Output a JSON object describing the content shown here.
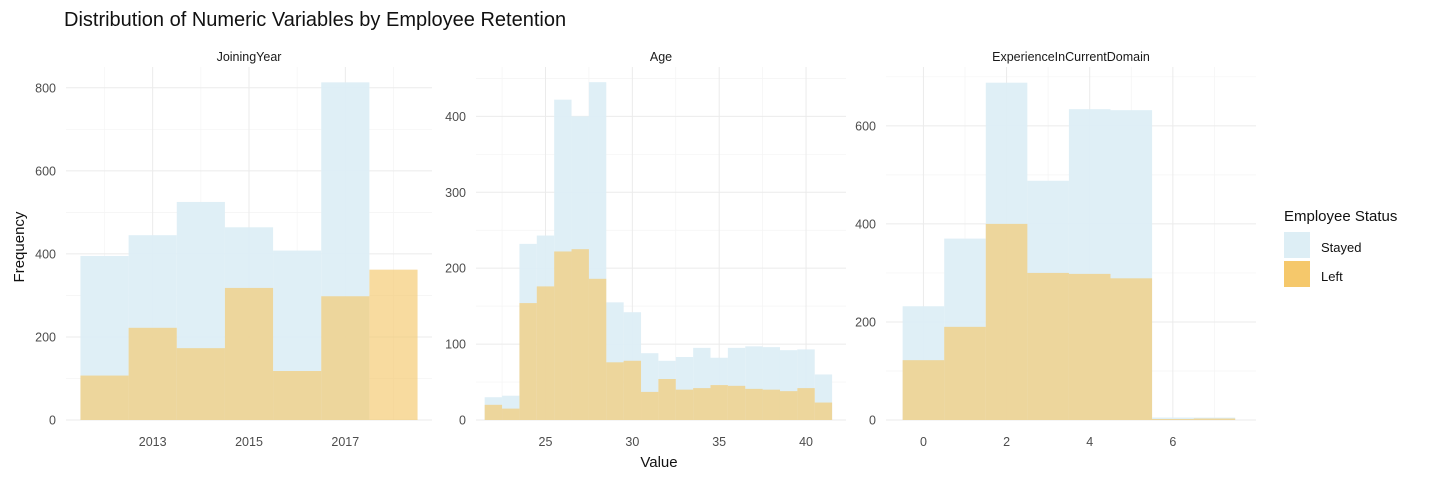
{
  "chart_data": {
    "type": "bar",
    "title": "Distribution of Numeric Variables by Employee Retention",
    "xlabel": "Value",
    "ylabel": "Frequency",
    "legend": {
      "title": "Employee Status",
      "placement": "right",
      "entries": [
        {
          "label": "Stayed",
          "color": "#ddeef5"
        },
        {
          "label": "Left",
          "color": "#f5c86b"
        }
      ]
    },
    "grid": true,
    "panels": [
      {
        "strip": "JoiningYear",
        "xlim": [
          2011.2,
          2018.8
        ],
        "ylim": [
          0,
          850
        ],
        "x_ticks": [
          2013,
          2015,
          2017
        ],
        "y_ticks": [
          0,
          200,
          400,
          600,
          800
        ],
        "bins": [
          {
            "from": 2011.5,
            "to": 2012.5,
            "stayed": 395,
            "left": 107
          },
          {
            "from": 2012.5,
            "to": 2013.5,
            "stayed": 445,
            "left": 222
          },
          {
            "from": 2013.5,
            "to": 2014.5,
            "stayed": 525,
            "left": 173
          },
          {
            "from": 2014.5,
            "to": 2015.5,
            "stayed": 464,
            "left": 318
          },
          {
            "from": 2015.5,
            "to": 2016.5,
            "stayed": 408,
            "left": 118
          },
          {
            "from": 2016.5,
            "to": 2017.5,
            "stayed": 813,
            "left": 298
          },
          {
            "from": 2017.5,
            "to": 2018.5,
            "stayed": 0,
            "left": 362
          }
        ]
      },
      {
        "strip": "Age",
        "xlim": [
          21.0,
          42.3
        ],
        "ylim": [
          0,
          465
        ],
        "x_ticks": [
          25,
          30,
          35,
          40
        ],
        "y_ticks": [
          0,
          100,
          200,
          300,
          400
        ],
        "bins": [
          {
            "from": 21.5,
            "to": 22.5,
            "stayed": 30,
            "left": 20
          },
          {
            "from": 22.5,
            "to": 23.5,
            "stayed": 32,
            "left": 15
          },
          {
            "from": 23.5,
            "to": 24.5,
            "stayed": 232,
            "left": 154
          },
          {
            "from": 24.5,
            "to": 25.5,
            "stayed": 243,
            "left": 176
          },
          {
            "from": 25.5,
            "to": 26.5,
            "stayed": 422,
            "left": 222
          },
          {
            "from": 26.5,
            "to": 27.5,
            "stayed": 400,
            "left": 225
          },
          {
            "from": 27.5,
            "to": 28.5,
            "stayed": 445,
            "left": 186
          },
          {
            "from": 28.5,
            "to": 29.5,
            "stayed": 155,
            "left": 76
          },
          {
            "from": 29.5,
            "to": 30.5,
            "stayed": 142,
            "left": 78
          },
          {
            "from": 30.5,
            "to": 31.5,
            "stayed": 88,
            "left": 37
          },
          {
            "from": 31.5,
            "to": 32.5,
            "stayed": 78,
            "left": 54
          },
          {
            "from": 32.5,
            "to": 33.5,
            "stayed": 83,
            "left": 40
          },
          {
            "from": 33.5,
            "to": 34.5,
            "stayed": 95,
            "left": 42
          },
          {
            "from": 34.5,
            "to": 35.5,
            "stayed": 82,
            "left": 46
          },
          {
            "from": 35.5,
            "to": 36.5,
            "stayed": 95,
            "left": 45
          },
          {
            "from": 36.5,
            "to": 37.5,
            "stayed": 97,
            "left": 41
          },
          {
            "from": 37.5,
            "to": 38.5,
            "stayed": 96,
            "left": 40
          },
          {
            "from": 38.5,
            "to": 39.5,
            "stayed": 92,
            "left": 38
          },
          {
            "from": 39.5,
            "to": 40.5,
            "stayed": 93,
            "left": 42
          },
          {
            "from": 40.5,
            "to": 41.5,
            "stayed": 60,
            "left": 23
          }
        ]
      },
      {
        "strip": "ExperienceInCurrentDomain",
        "xlim": [
          -0.9,
          8.0
        ],
        "ylim": [
          0,
          720
        ],
        "x_ticks": [
          0,
          2,
          4,
          6
        ],
        "y_ticks": [
          0,
          200,
          400,
          600
        ],
        "bins": [
          {
            "from": -0.5,
            "to": 0.5,
            "stayed": 232,
            "left": 122
          },
          {
            "from": 0.5,
            "to": 1.5,
            "stayed": 370,
            "left": 190
          },
          {
            "from": 1.5,
            "to": 2.5,
            "stayed": 688,
            "left": 400
          },
          {
            "from": 2.5,
            "to": 3.5,
            "stayed": 488,
            "left": 300
          },
          {
            "from": 3.5,
            "to": 4.5,
            "stayed": 634,
            "left": 298
          },
          {
            "from": 4.5,
            "to": 5.5,
            "stayed": 632,
            "left": 289
          },
          {
            "from": 5.5,
            "to": 6.5,
            "stayed": 5,
            "left": 2
          },
          {
            "from": 6.5,
            "to": 7.5,
            "stayed": 5,
            "left": 3
          }
        ]
      }
    ]
  }
}
